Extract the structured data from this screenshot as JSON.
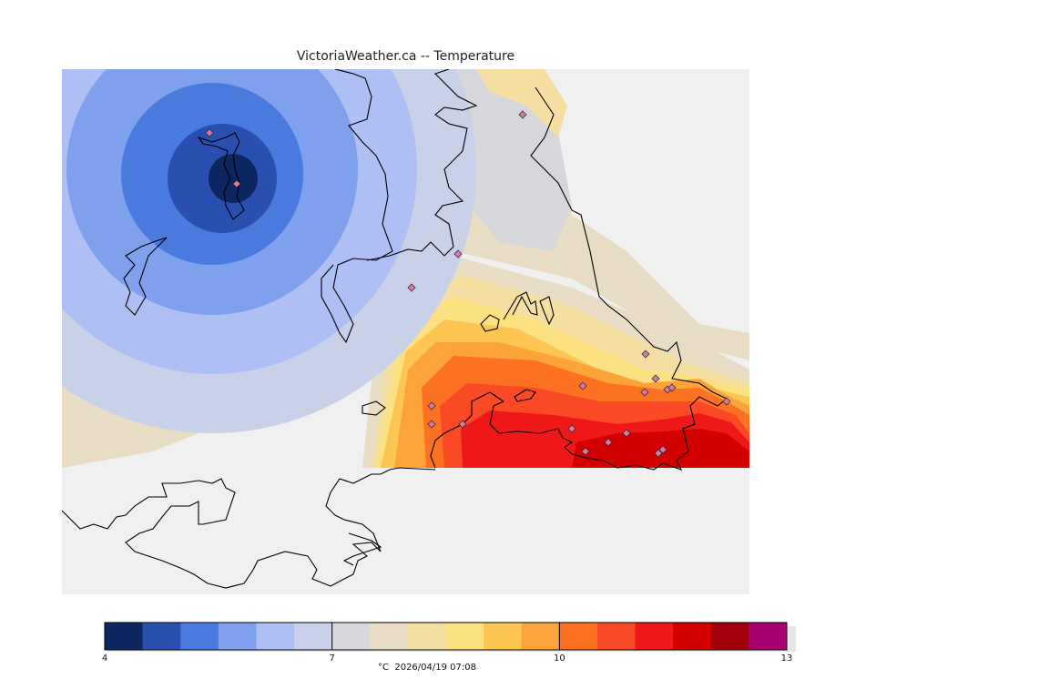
{
  "title": "VictoriaWeather.ca -- Temperature",
  "colorbar": {
    "unit": "°C",
    "timestamp": "2026/04/19 07:08",
    "min": 4,
    "max": 13,
    "step": 0.5,
    "tick_labels": [
      "4",
      "7",
      "10",
      "13"
    ],
    "colors": [
      "#0c2660",
      "#2a4fb1",
      "#4a7ade",
      "#7fa0ec",
      "#aebff4",
      "#c8d1e8",
      "#d6d7db",
      "#e8ddc4",
      "#f4dea2",
      "#fce181",
      "#fdc653",
      "#fca43a",
      "#fc7122",
      "#f94a25",
      "#ee1818",
      "#d20000",
      "#a3000f",
      "#a80070"
    ]
  },
  "map": {
    "land_color": "#f0f0f0",
    "station_markers": 21
  }
}
